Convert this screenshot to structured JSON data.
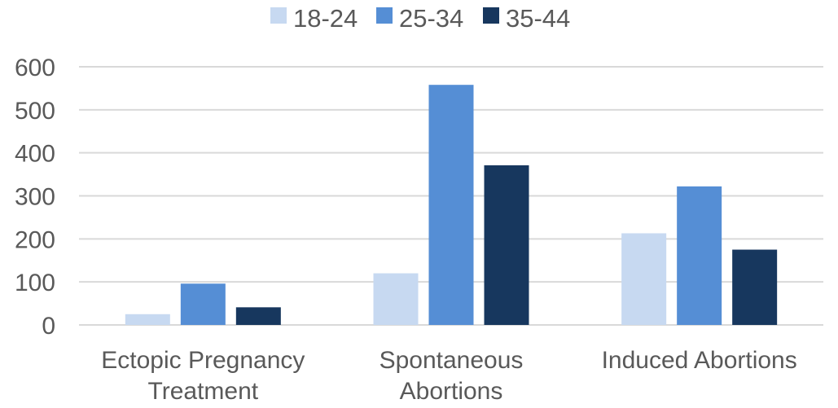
{
  "chart_data": {
    "type": "bar",
    "categories": [
      [
        "Ectopic Pregnancy",
        "Treatment"
      ],
      [
        "Spontaneous",
        "Abortions"
      ],
      [
        "Induced Abortions"
      ]
    ],
    "series": [
      {
        "name": "18-24",
        "color": "#c7d9f1",
        "values": [
          25,
          120,
          213
        ]
      },
      {
        "name": "25-34",
        "color": "#558ed5",
        "values": [
          96,
          558,
          322
        ]
      },
      {
        "name": "35-44",
        "color": "#17375e",
        "values": [
          41,
          371,
          175
        ]
      }
    ],
    "ylim": [
      0,
      600
    ],
    "yticks": [
      0,
      100,
      200,
      300,
      400,
      500,
      600
    ],
    "title": "",
    "xlabel": "",
    "ylabel": "",
    "legend_position": "top",
    "grid": true
  }
}
